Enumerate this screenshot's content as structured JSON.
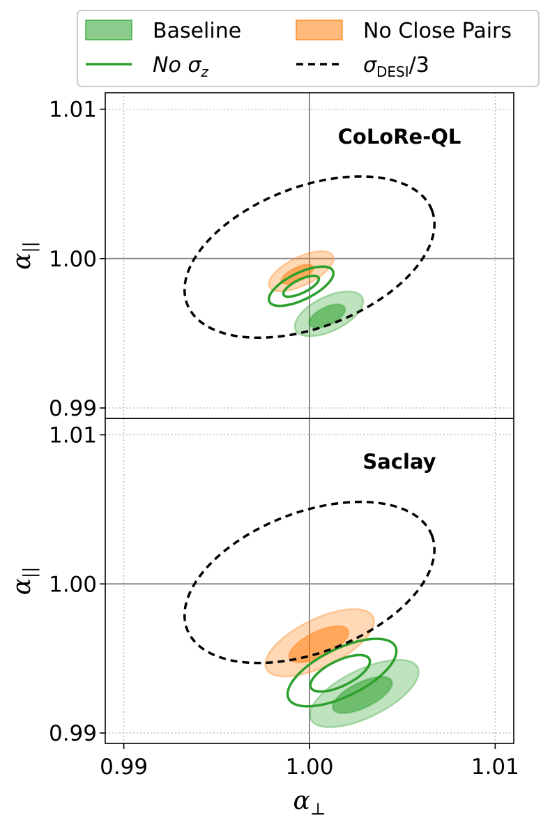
{
  "chart_data": {
    "type": "contour",
    "legend": {
      "placement": "top",
      "entries": [
        {
          "key": "baseline",
          "label": "Baseline",
          "style": "filled",
          "color": "#2ca02c"
        },
        {
          "key": "no_close_pairs",
          "label": "No Close Pairs",
          "style": "filled",
          "color": "#ff7f0e"
        },
        {
          "key": "no_sigma_z",
          "label": "No σz",
          "label_main": "No σ",
          "label_sub": "z",
          "style": "solid-line",
          "color": "#2ca02c"
        },
        {
          "key": "desi",
          "label": "σDESI/3",
          "label_main": "σ",
          "label_sub": "DESI",
          "label_tail": "/3",
          "style": "dashed-line",
          "color": "#000000"
        }
      ]
    },
    "xlabel": "α⊥",
    "xlabel_main": "α",
    "xlabel_sub": "⊥",
    "ylabel": "α||",
    "ylabel_main": "α",
    "ylabel_sub": "||",
    "xlim": [
      0.989,
      1.011
    ],
    "ylim": [
      0.9893,
      1.0111
    ],
    "xticks": [
      {
        "v": 0.99,
        "label": "0.99"
      },
      {
        "v": 1.0,
        "label": "1.00"
      },
      {
        "v": 1.01,
        "label": "1.01"
      }
    ],
    "yticks": [
      {
        "v": 0.99,
        "label": "0.99"
      },
      {
        "v": 1.0,
        "label": "1.00"
      },
      {
        "v": 1.01,
        "label": "1.01"
      }
    ],
    "grid": true,
    "reference_lines": {
      "x": 1.0,
      "y": 1.0
    },
    "panels": [
      {
        "label": "CoLoRe-QL",
        "contours": [
          {
            "series": "desi",
            "level": 1,
            "cx": 1.0,
            "cy": 1.0001,
            "rx": 0.00706,
            "ry": 0.0047,
            "angle": -21
          },
          {
            "series": "no_close_pairs",
            "level": 2,
            "cx": 0.99955,
            "cy": 0.99915,
            "rx": 0.0019,
            "ry": 0.00095,
            "angle": -26
          },
          {
            "series": "no_close_pairs",
            "level": 1,
            "cx": 0.99935,
            "cy": 0.99895,
            "rx": 0.00095,
            "ry": 0.00045,
            "angle": -26
          },
          {
            "series": "baseline",
            "level": 2,
            "cx": 1.00105,
            "cy": 0.9963,
            "rx": 0.002,
            "ry": 0.00115,
            "angle": -26
          },
          {
            "series": "baseline",
            "level": 1,
            "cx": 1.00095,
            "cy": 0.99615,
            "rx": 0.00105,
            "ry": 0.0006,
            "angle": -26
          },
          {
            "series": "no_sigma_z",
            "level": 2,
            "cx": 0.99955,
            "cy": 0.99815,
            "rx": 0.0019,
            "ry": 0.0009,
            "angle": -26
          },
          {
            "series": "no_sigma_z",
            "level": 1,
            "cx": 0.99955,
            "cy": 0.99815,
            "rx": 0.00105,
            "ry": 0.00045,
            "angle": -26
          }
        ]
      },
      {
        "label": "Saclay",
        "contours": [
          {
            "series": "desi",
            "level": 1,
            "cx": 1.0,
            "cy": 1.0001,
            "rx": 0.00706,
            "ry": 0.0047,
            "angle": -21
          },
          {
            "series": "no_close_pairs",
            "level": 2,
            "cx": 1.00055,
            "cy": 0.99605,
            "rx": 0.0032,
            "ry": 0.0016,
            "angle": -26
          },
          {
            "series": "no_close_pairs",
            "level": 1,
            "cx": 1.0005,
            "cy": 0.99595,
            "rx": 0.00175,
            "ry": 0.00085,
            "angle": -26
          },
          {
            "series": "baseline",
            "level": 2,
            "cx": 1.00295,
            "cy": 0.99265,
            "rx": 0.0032,
            "ry": 0.0016,
            "angle": -26
          },
          {
            "series": "baseline",
            "level": 1,
            "cx": 1.00285,
            "cy": 0.99255,
            "rx": 0.00175,
            "ry": 0.00085,
            "angle": -26
          },
          {
            "series": "no_sigma_z",
            "level": 2,
            "cx": 1.00175,
            "cy": 0.99405,
            "rx": 0.0032,
            "ry": 0.0016,
            "angle": -26
          },
          {
            "series": "no_sigma_z",
            "level": 1,
            "cx": 1.00165,
            "cy": 0.994,
            "rx": 0.00175,
            "ry": 0.00085,
            "angle": -26
          }
        ]
      }
    ]
  }
}
